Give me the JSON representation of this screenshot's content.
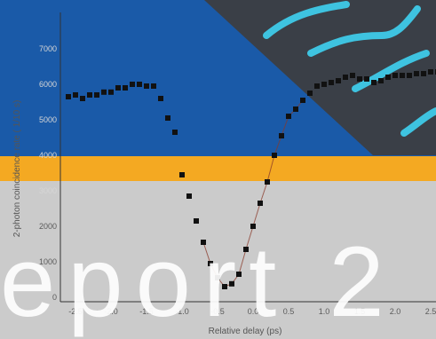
{
  "colors": {
    "blue_band": "#1a5aa8",
    "orange_band": "#f4a922",
    "gray_band": "#cbcbcb",
    "dark_panel": "#3a3f47",
    "cyan_lines": "#3ec3e0",
    "markers": "#111111",
    "fit_line": "#8a3a2a"
  },
  "overlay_text": "eport 2",
  "chart_data": {
    "type": "scatter",
    "title": "",
    "xlabel": "Relative delay (ps)",
    "ylabel": "2-photon coincidence rate ( 1/10 s)",
    "xlim": [
      -2.6,
      2.6
    ],
    "ylim": [
      0,
      7000
    ],
    "xticks": [
      "-2.5",
      "-2.0",
      "-1.5",
      "-1.0",
      "-0.5",
      "0.0",
      "0.5",
      "1.0",
      "1.5",
      "2.0",
      "2.5"
    ],
    "yticks": [
      "0",
      "1000",
      "2000",
      "3000",
      "4000",
      "5000",
      "6000",
      "7000"
    ],
    "grid": false,
    "series": [
      {
        "x": [
          -2.6,
          -2.5,
          -2.4,
          -2.3,
          -2.2,
          -2.1,
          -2.0,
          -1.9,
          -1.8,
          -1.7,
          -1.6,
          -1.5,
          -1.4,
          -1.3,
          -1.2,
          -1.1,
          -1.0,
          -0.9,
          -0.8,
          -0.7,
          -0.6,
          -0.5,
          -0.4,
          -0.3,
          -0.2,
          -0.1,
          0.0,
          0.1,
          0.2,
          0.3,
          0.4,
          0.5,
          0.6,
          0.7,
          0.8,
          0.9,
          1.0,
          1.1,
          1.2,
          1.3,
          1.4,
          1.5,
          1.6,
          1.7,
          1.8,
          1.9,
          2.0,
          2.1,
          2.2,
          2.3,
          2.4,
          2.5,
          2.6
        ],
        "values": [
          5650,
          5700,
          5600,
          5700,
          5700,
          5780,
          5780,
          5900,
          5900,
          6000,
          6000,
          5950,
          5950,
          5600,
          5050,
          4650,
          3450,
          2850,
          2150,
          1550,
          950,
          550,
          300,
          380,
          650,
          1350,
          2000,
          2650,
          3250,
          4000,
          4550,
          5100,
          5300,
          5550,
          5750,
          5950,
          6000,
          6050,
          6100,
          6200,
          6250,
          6150,
          6150,
          6050,
          6100,
          6200,
          6250,
          6250,
          6250,
          6300,
          6300,
          6350,
          6350
        ]
      }
    ]
  }
}
